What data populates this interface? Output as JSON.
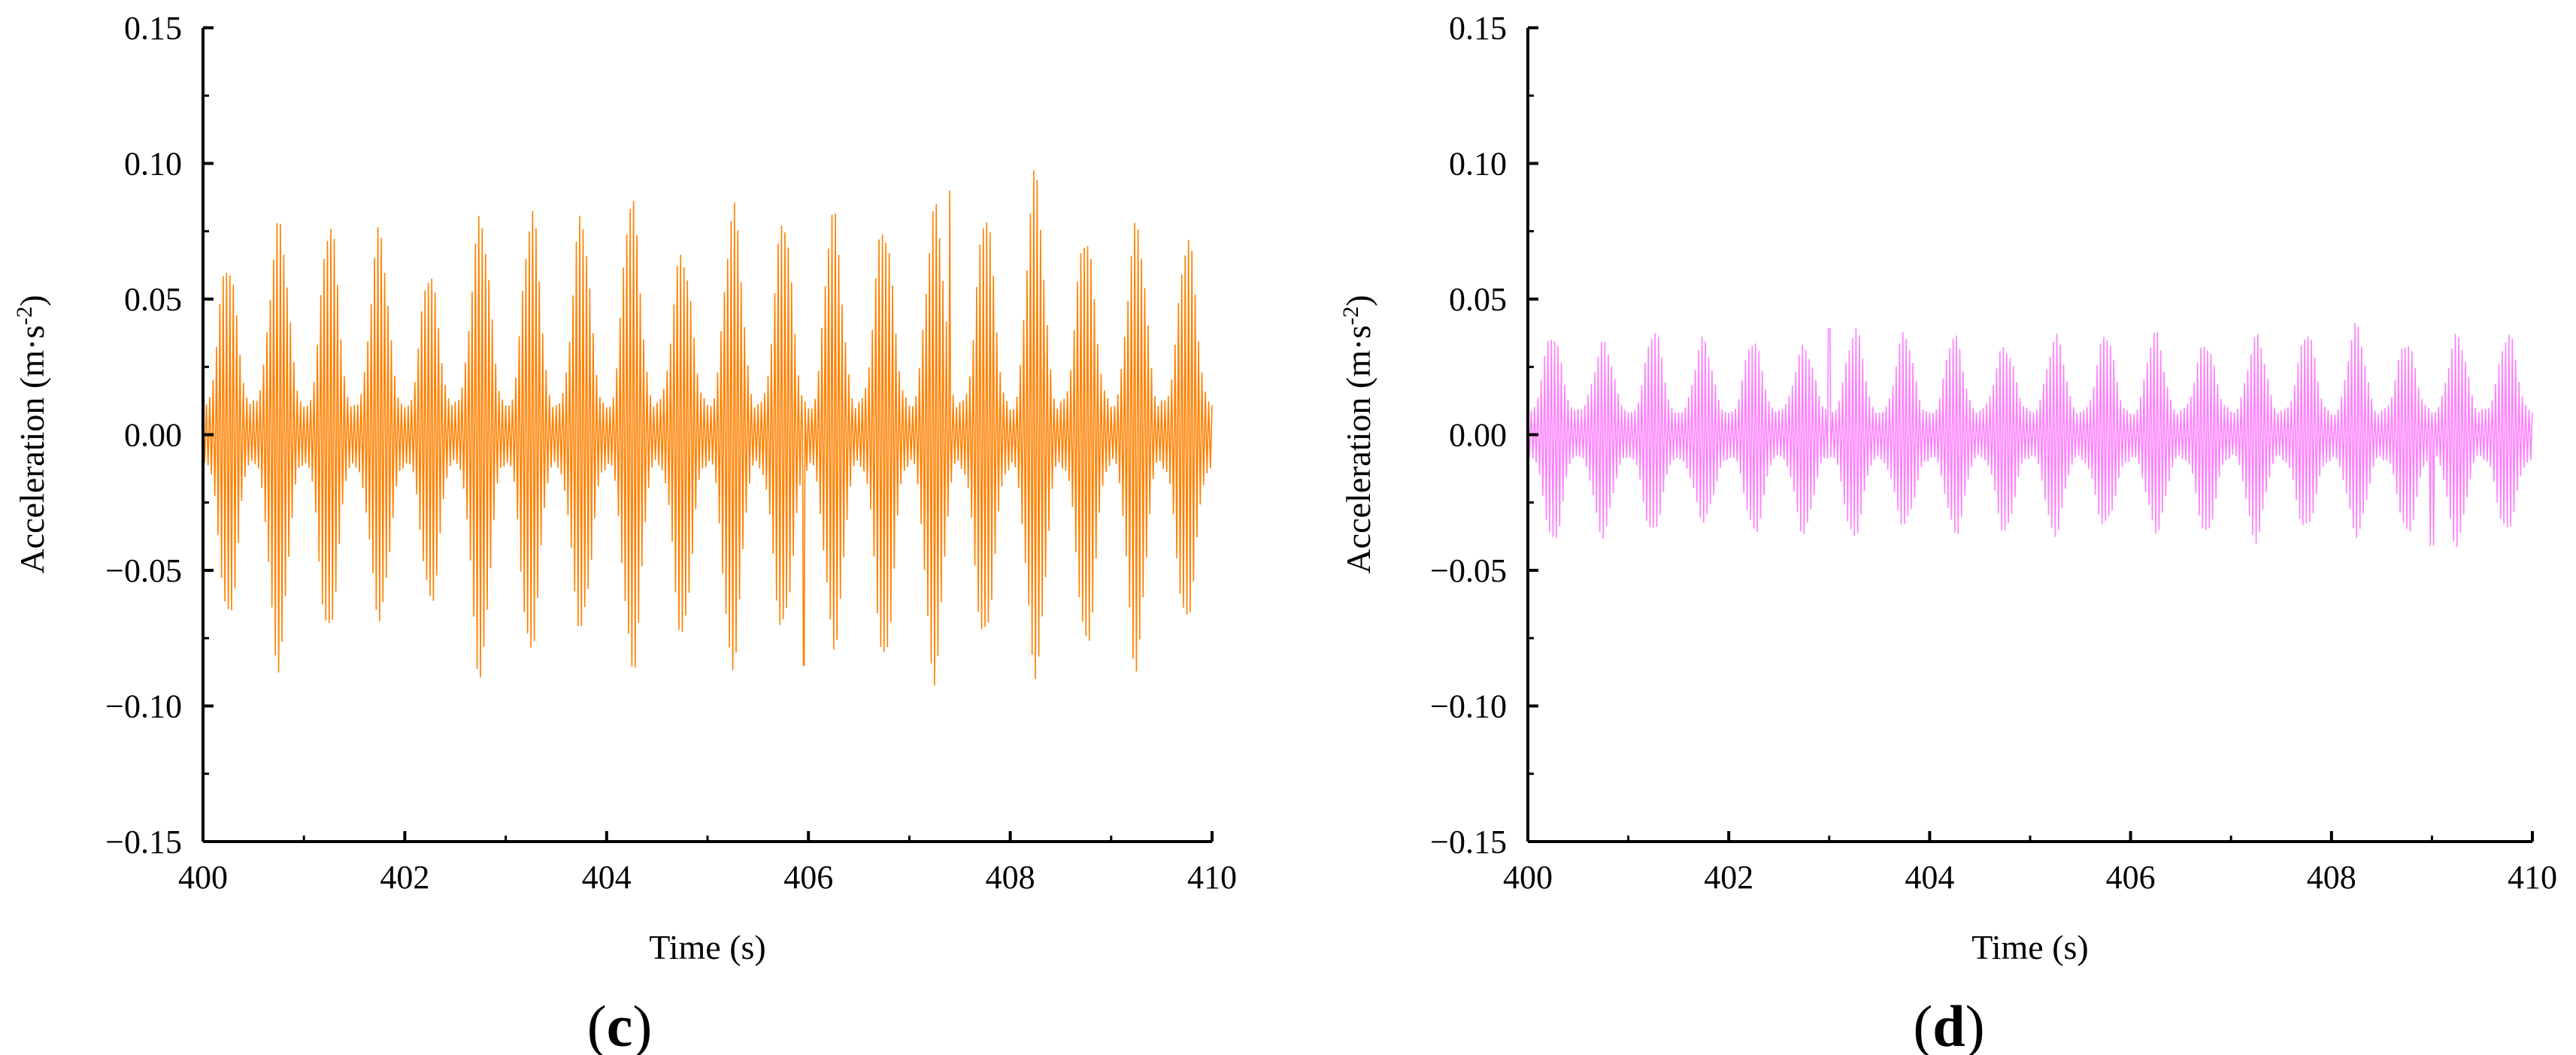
{
  "chart_data": [
    {
      "type": "line",
      "panel_label": "c",
      "xlabel": "Time (s)",
      "ylabel_text": "Acceleration (m·s",
      "ylabel_sup": "-2",
      "ylabel_close": ")",
      "xlim": [
        400,
        410
      ],
      "ylim": [
        -0.15,
        0.15
      ],
      "xticks": [
        400,
        402,
        404,
        406,
        408,
        410
      ],
      "xtick_labels": [
        "400",
        "402",
        "404",
        "406",
        "408",
        "410"
      ],
      "yticks": [
        -0.15,
        -0.1,
        -0.05,
        0.0,
        0.05,
        0.1,
        0.15
      ],
      "ytick_labels": [
        "−0.15",
        "−0.10",
        "−0.05",
        "0.00",
        "0.05",
        "0.10",
        "0.15"
      ],
      "grid": false,
      "color": "#FF8000",
      "series": [
        {
          "beat_period_s": 0.5,
          "carrier_cycles_per_s": 30,
          "envelope_peaks": [
            0.065,
            0.08,
            0.075,
            0.07,
            0.06,
            0.083,
            0.08,
            0.075,
            0.085,
            0.07,
            0.083,
            0.075,
            0.078,
            0.08,
            0.085,
            0.078,
            0.09,
            0.075,
            0.08,
            0.07
          ],
          "envelope_troughs": [
            0.01,
            0.012,
            0.01,
            0.012,
            0.01,
            0.012,
            0.01,
            0.012,
            0.01,
            0.012,
            0.01,
            0.012,
            0.01,
            0.012,
            0.01,
            0.012,
            0.01,
            0.012,
            0.01,
            0.012
          ],
          "peak_positive": 0.09,
          "peak_negative": -0.085,
          "peak_positive_time": 407.4,
          "peak_negative_time": 405.95
        }
      ]
    },
    {
      "type": "line",
      "panel_label": "d",
      "xlabel": "Time (s)",
      "ylabel_text": "Acceleration (m·s",
      "ylabel_sup": "-2",
      "ylabel_close": ")",
      "xlim": [
        400,
        410
      ],
      "ylim": [
        -0.15,
        0.15
      ],
      "xticks": [
        400,
        402,
        404,
        406,
        408,
        410
      ],
      "xtick_labels": [
        "400",
        "402",
        "404",
        "406",
        "408",
        "410"
      ],
      "yticks": [
        -0.15,
        -0.1,
        -0.05,
        0.0,
        0.05,
        0.1,
        0.15
      ],
      "ytick_labels": [
        "−0.15",
        "−0.10",
        "−0.05",
        "0.00",
        "0.05",
        "0.10",
        "0.15"
      ],
      "grid": false,
      "color": "#FF80FF",
      "series": [
        {
          "beat_period_s": 0.5,
          "carrier_cycles_per_s": 30,
          "envelope_peaks": [
            0.038,
            0.035,
            0.037,
            0.033,
            0.035,
            0.034,
            0.038,
            0.035,
            0.036,
            0.034,
            0.036,
            0.035,
            0.036,
            0.035,
            0.037,
            0.036,
            0.038,
            0.035,
            0.038,
            0.036
          ],
          "envelope_troughs": [
            0.008,
            0.009,
            0.008,
            0.009,
            0.008,
            0.009,
            0.008,
            0.009,
            0.008,
            0.009,
            0.008,
            0.009,
            0.008,
            0.009,
            0.008,
            0.009,
            0.008,
            0.009,
            0.008,
            0.009
          ],
          "peak_positive": 0.039,
          "peak_negative": -0.041,
          "peak_positive_time": 403.0,
          "peak_negative_time": 409.0
        }
      ]
    }
  ]
}
